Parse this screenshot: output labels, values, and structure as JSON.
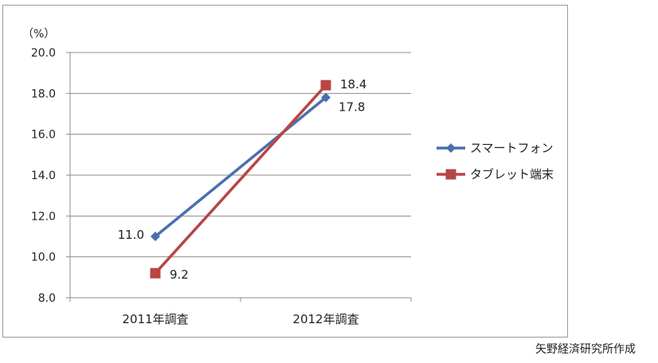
{
  "chart_data": {
    "type": "line",
    "categories": [
      "2011年調査",
      "2012年調査"
    ],
    "series": [
      {
        "name": "スマートフォン",
        "values": [
          11.0,
          17.8
        ],
        "color": "#4a6fad",
        "marker": "diamond"
      },
      {
        "name": "タブレット端末",
        "values": [
          9.2,
          18.4
        ],
        "color": "#b84545",
        "marker": "square"
      }
    ],
    "data_labels": [
      "11.0",
      "17.8",
      "9.2",
      "18.4"
    ],
    "y_unit_label": "（%）",
    "ylim": [
      8.0,
      20.0
    ],
    "yticks": [
      "8.0",
      "10.0",
      "12.0",
      "14.0",
      "16.0",
      "18.0",
      "20.0"
    ],
    "grid": true,
    "legend_position": "right"
  },
  "source_note": "矢野経済研究所作成"
}
